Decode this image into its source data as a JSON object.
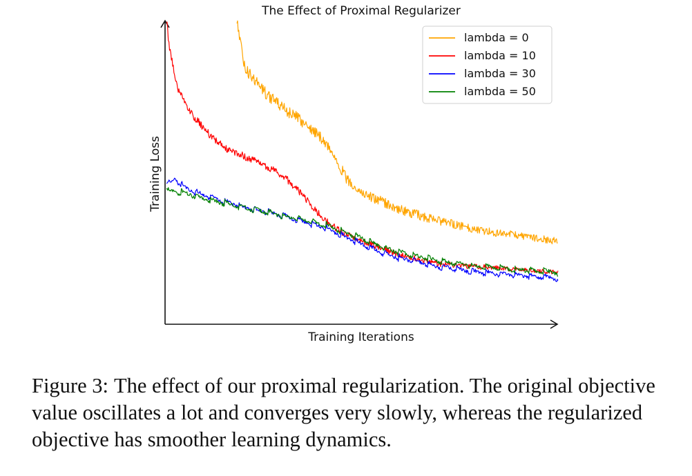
{
  "chart_data": {
    "type": "line",
    "title": "The Effect of Proximal Regularizer",
    "xlabel": "Training Iterations",
    "ylabel": "Training Loss",
    "x_ticks": "none",
    "y_ticks": "none",
    "xlim": [
      0,
      1
    ],
    "ylim": [
      0,
      1
    ],
    "grid": false,
    "legend_position": "top-right",
    "series": [
      {
        "name": "lambda = 0",
        "color": "#FFA500",
        "x": [
          0.18,
          0.2,
          0.22,
          0.25,
          0.28,
          0.32,
          0.36,
          0.4,
          0.43,
          0.46,
          0.5,
          0.55,
          0.6,
          0.7,
          0.8,
          0.9,
          1.0
        ],
        "y": [
          1.0,
          0.83,
          0.8,
          0.75,
          0.71,
          0.67,
          0.63,
          0.58,
          0.52,
          0.44,
          0.39,
          0.36,
          0.33,
          0.29,
          0.26,
          0.24,
          0.22
        ]
      },
      {
        "name": "lambda = 10",
        "color": "#FF0000",
        "x": [
          0.0,
          0.01,
          0.03,
          0.06,
          0.1,
          0.15,
          0.2,
          0.25,
          0.3,
          0.35,
          0.4,
          0.45,
          0.5,
          0.6,
          0.7,
          0.8,
          0.9,
          1.0
        ],
        "y": [
          1.0,
          0.88,
          0.76,
          0.68,
          0.61,
          0.55,
          0.52,
          0.49,
          0.45,
          0.38,
          0.3,
          0.25,
          0.22,
          0.17,
          0.14,
          0.13,
          0.12,
          0.11
        ]
      },
      {
        "name": "lambda = 30",
        "color": "#0000FF",
        "x": [
          0.0,
          0.02,
          0.05,
          0.1,
          0.2,
          0.3,
          0.4,
          0.45,
          0.5,
          0.55,
          0.6,
          0.7,
          0.8,
          0.9,
          1.0
        ],
        "y": [
          0.42,
          0.44,
          0.41,
          0.38,
          0.34,
          0.31,
          0.27,
          0.24,
          0.21,
          0.18,
          0.16,
          0.13,
          0.11,
          0.1,
          0.09
        ]
      },
      {
        "name": "lambda = 50",
        "color": "#008000",
        "x": [
          0.0,
          0.05,
          0.1,
          0.2,
          0.3,
          0.4,
          0.5,
          0.55,
          0.6,
          0.7,
          0.8,
          0.9,
          1.0
        ],
        "y": [
          0.4,
          0.39,
          0.37,
          0.34,
          0.31,
          0.28,
          0.23,
          0.2,
          0.18,
          0.15,
          0.13,
          0.12,
          0.11
        ]
      }
    ]
  },
  "caption": {
    "label": "Figure 3:",
    "text": "The effect of our proximal regularization. The original objective value oscillates a lot and converges very slowly, whereas the regularized objective has smoother learning dynamics."
  }
}
